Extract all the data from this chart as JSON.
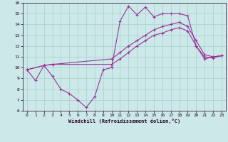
{
  "xlabel": "Windchill (Refroidissement éolien,°C)",
  "xlim": [
    -0.5,
    23.5
  ],
  "ylim": [
    6,
    16
  ],
  "xticks": [
    0,
    1,
    2,
    3,
    4,
    5,
    6,
    7,
    8,
    9,
    10,
    11,
    12,
    13,
    14,
    15,
    16,
    17,
    18,
    19,
    20,
    21,
    22,
    23
  ],
  "yticks": [
    6,
    7,
    8,
    9,
    10,
    11,
    12,
    13,
    14,
    15,
    16
  ],
  "bg_color": "#cce8e8",
  "grid_color": "#aad4d4",
  "line_color": "#993399",
  "line1_x": [
    0,
    1,
    2,
    3,
    4,
    5,
    6,
    7,
    8,
    9,
    10,
    11,
    12,
    13,
    14,
    15,
    16,
    17,
    18,
    19,
    20,
    21,
    22,
    23
  ],
  "line1_y": [
    9.8,
    8.8,
    10.2,
    9.2,
    8.0,
    7.6,
    7.0,
    6.3,
    7.3,
    9.8,
    10.0,
    14.3,
    15.7,
    14.9,
    15.6,
    14.7,
    15.0,
    15.0,
    15.0,
    14.8,
    12.0,
    10.8,
    11.0,
    11.1
  ],
  "line2_x": [
    0,
    2,
    3,
    10,
    11,
    12,
    13,
    14,
    15,
    16,
    17,
    18,
    19,
    20,
    21,
    22,
    23
  ],
  "line2_y": [
    9.8,
    10.2,
    10.3,
    10.8,
    11.4,
    12.0,
    12.5,
    13.0,
    13.5,
    13.8,
    14.0,
    14.2,
    13.8,
    12.5,
    11.2,
    11.0,
    11.1
  ],
  "line3_x": [
    0,
    2,
    3,
    10,
    11,
    12,
    13,
    14,
    15,
    16,
    17,
    18,
    19,
    20,
    21,
    22,
    23
  ],
  "line3_y": [
    9.8,
    10.2,
    10.3,
    10.3,
    10.8,
    11.4,
    12.0,
    12.5,
    13.0,
    13.2,
    13.5,
    13.7,
    13.4,
    12.0,
    11.0,
    10.9,
    11.1
  ]
}
